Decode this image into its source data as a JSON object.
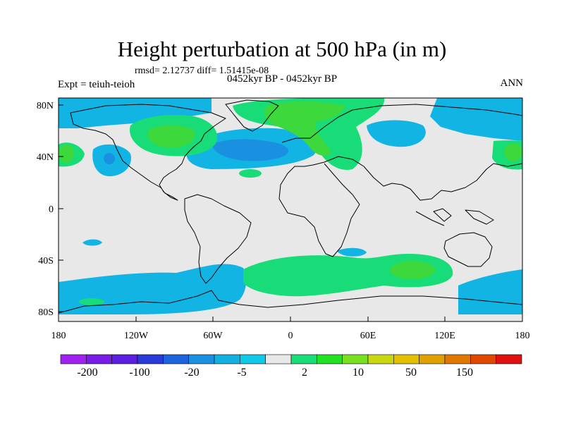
{
  "title": "Height perturbation at 500 hPa (in m)",
  "stats": "rmsd= 2.12737  diff= 1.51415e-08",
  "experiment": "Expt = teiuh-teioh",
  "period": "0452kyr BP - 0452kyr BP",
  "season": "ANN",
  "map": {
    "lon_ticks": [
      "180",
      "120W",
      "60W",
      "0",
      "60E",
      "120E",
      "180"
    ],
    "lat_ticks": [
      "80N",
      "40N",
      "0",
      "40S",
      "80S"
    ]
  },
  "colorbar": {
    "labels": [
      "-200",
      "-100",
      "-20",
      "-5",
      "2",
      "10",
      "50",
      "150"
    ],
    "colors": [
      "#a020f0",
      "#7a1ce8",
      "#5a1ee0",
      "#2a3ad8",
      "#1a64e0",
      "#1a90e0",
      "#12b0e0",
      "#10c8e8",
      "#e8e8e8",
      "#18dc78",
      "#22e022",
      "#78e01e",
      "#c8d810",
      "#e0c000",
      "#e0a000",
      "#e07800",
      "#e04800",
      "#e01010"
    ]
  },
  "fills": {
    "ocean": "#e8e8e8",
    "cool": "#12b4e4",
    "cool_dark": "#1a90e0",
    "warm": "#18dc78",
    "warm_dark": "#3cd83c"
  }
}
